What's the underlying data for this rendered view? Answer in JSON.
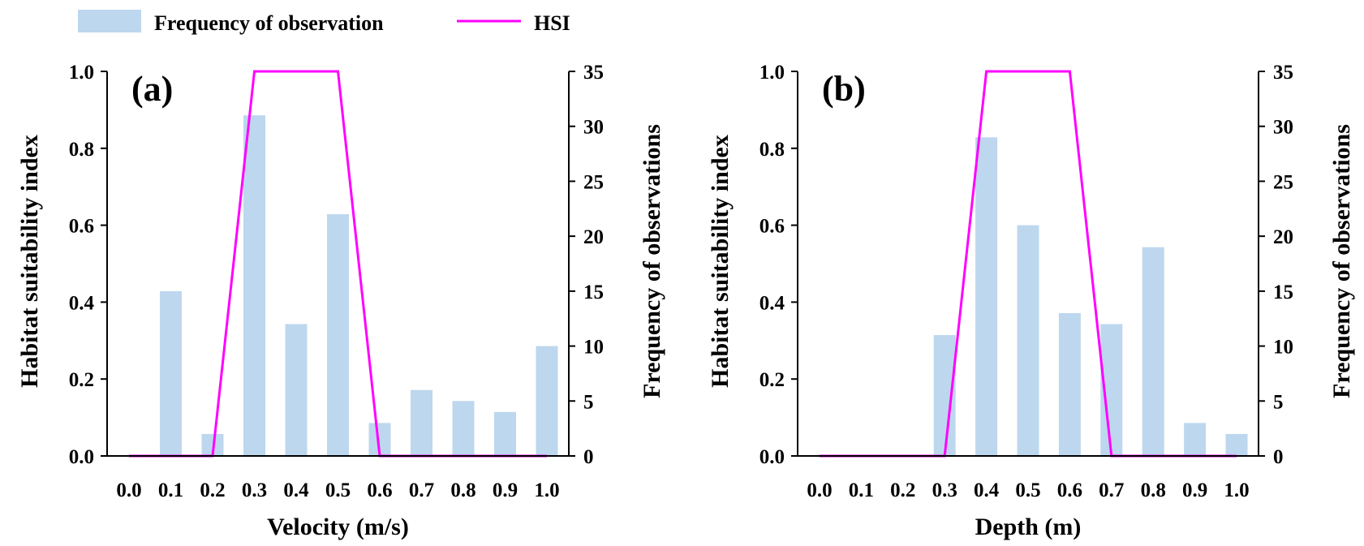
{
  "legend": {
    "items": [
      {
        "label": "Frequency of observation",
        "kind": "bar",
        "color": "#bdd7ee"
      },
      {
        "label": "HSI",
        "kind": "line",
        "color": "#ff00ff"
      }
    ]
  },
  "colors": {
    "bar": "#bdd7ee",
    "line": "#ff00ff",
    "axis": "#000000"
  },
  "chart_data": [
    {
      "type": "bar",
      "panel_label": "(a)",
      "title": "",
      "xlabel": "Velocity (m/s)",
      "ylabel": "Habitat suitability index",
      "y2label": "Frequency of observations",
      "x_ticks": [
        "0.0",
        "0.1",
        "0.2",
        "0.3",
        "0.4",
        "0.5",
        "0.6",
        "0.7",
        "0.8",
        "0.9",
        "1.0"
      ],
      "ylim": [
        0,
        1
      ],
      "y_ticks": [
        "0.0",
        "0.2",
        "0.4",
        "0.6",
        "0.8",
        "1.0"
      ],
      "y2lim": [
        0,
        35
      ],
      "y2_ticks": [
        "0",
        "5",
        "10",
        "15",
        "20",
        "25",
        "30",
        "35"
      ],
      "grid": false,
      "legend_position": "top",
      "series": [
        {
          "name": "Frequency of observation",
          "type": "bar",
          "axis": "right",
          "x": [
            0.0,
            0.1,
            0.2,
            0.3,
            0.4,
            0.5,
            0.6,
            0.7,
            0.8,
            0.9,
            1.0
          ],
          "values": [
            0,
            15,
            2,
            31,
            12,
            22,
            3,
            6,
            5,
            4,
            10
          ]
        },
        {
          "name": "HSI",
          "type": "line",
          "axis": "left",
          "x": [
            0.0,
            0.2,
            0.3,
            0.5,
            0.6,
            1.0
          ],
          "values": [
            0,
            0,
            1,
            1,
            0,
            0
          ]
        }
      ]
    },
    {
      "type": "bar",
      "panel_label": "(b)",
      "title": "",
      "xlabel": "Depth (m)",
      "ylabel": "Habitat suitability index",
      "y2label": "Frequency of observations",
      "x_ticks": [
        "0.0",
        "0.1",
        "0.2",
        "0.3",
        "0.4",
        "0.5",
        "0.6",
        "0.7",
        "0.8",
        "0.9",
        "1.0"
      ],
      "ylim": [
        0,
        1
      ],
      "y_ticks": [
        "0.0",
        "0.2",
        "0.4",
        "0.6",
        "0.8",
        "1.0"
      ],
      "y2lim": [
        0,
        35
      ],
      "y2_ticks": [
        "0",
        "5",
        "10",
        "15",
        "20",
        "25",
        "30",
        "35"
      ],
      "grid": false,
      "legend_position": "top",
      "series": [
        {
          "name": "Frequency of observation",
          "type": "bar",
          "axis": "right",
          "x": [
            0.0,
            0.1,
            0.2,
            0.3,
            0.4,
            0.5,
            0.6,
            0.7,
            0.8,
            0.9,
            1.0
          ],
          "values": [
            0,
            0,
            0,
            11,
            29,
            21,
            13,
            12,
            19,
            3,
            2
          ]
        },
        {
          "name": "HSI",
          "type": "line",
          "axis": "left",
          "x": [
            0.0,
            0.3,
            0.4,
            0.6,
            0.7,
            1.0
          ],
          "values": [
            0,
            0,
            1,
            1,
            0,
            0
          ]
        }
      ]
    }
  ]
}
